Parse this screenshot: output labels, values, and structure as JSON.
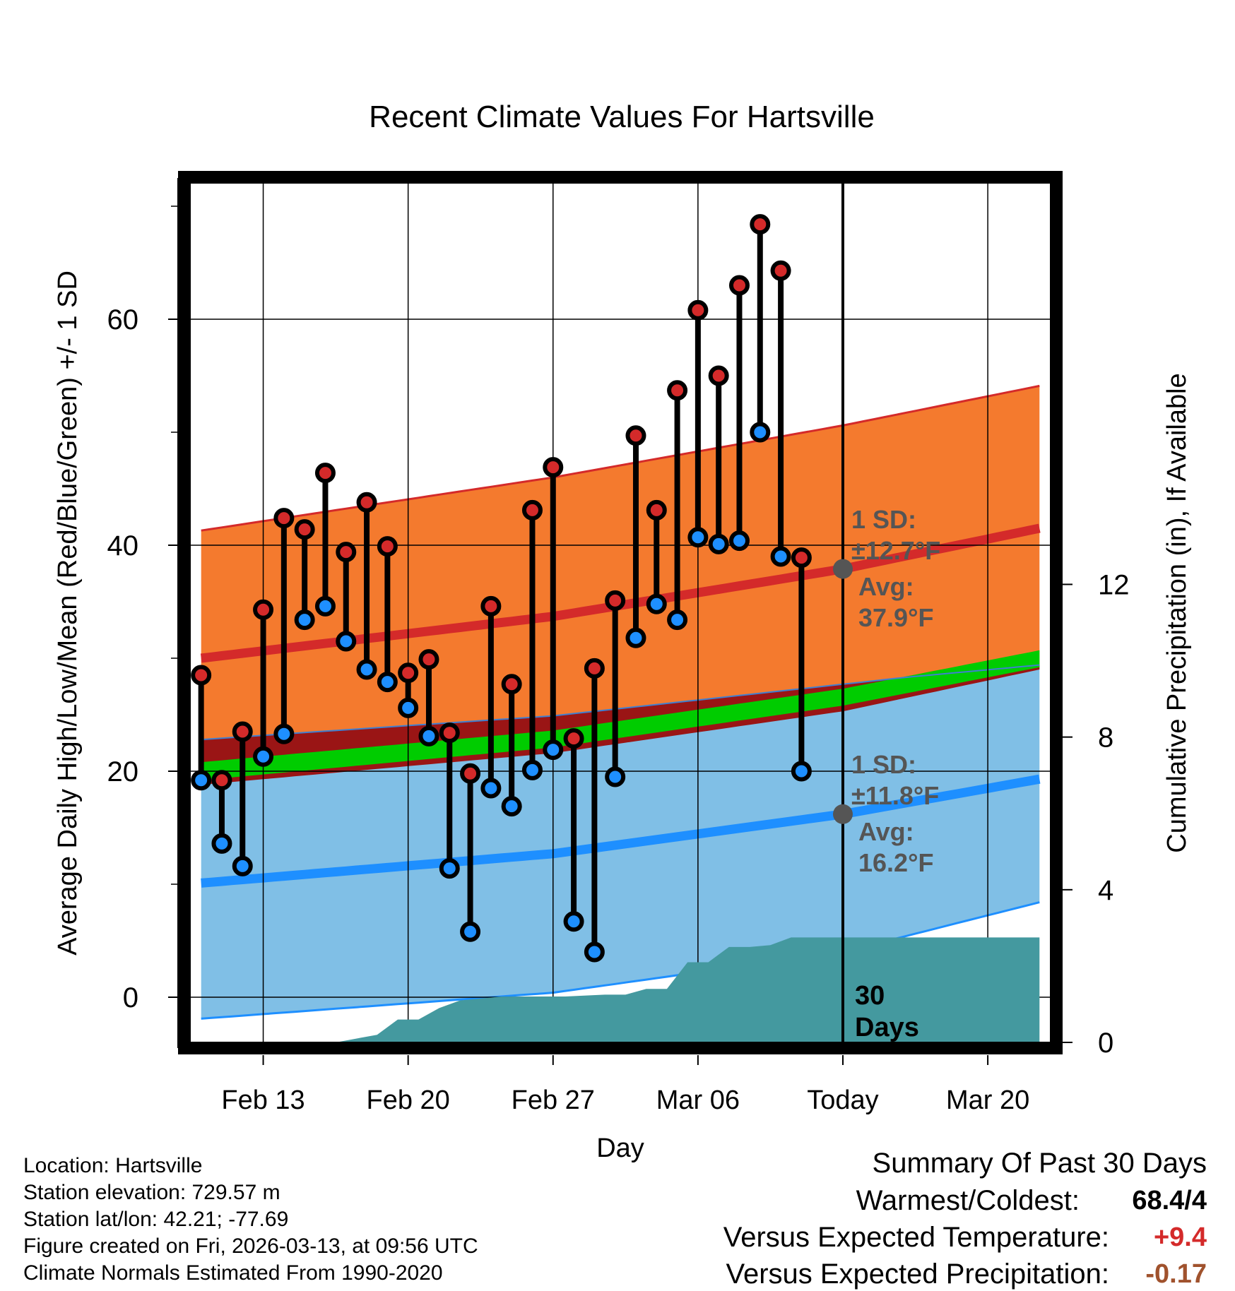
{
  "chart_data": {
    "type": "line",
    "title": "Recent Climate Values For Hartsville",
    "xlabel": "Day",
    "ylabel": "Average Daily High/Low/Mean (Red/Blue/Green) +/- 1 SD",
    "y2label": "Cumulative Precipitation (in), If Available",
    "x_range_days": [
      -31.5,
      10
    ],
    "ylim": [
      -4,
      72
    ],
    "y2lim": [
      0,
      22.5
    ],
    "yticks": [
      0,
      20,
      40,
      60
    ],
    "y2ticks": [
      0,
      4,
      8,
      12
    ],
    "xticks": [
      {
        "label": "Feb 13",
        "day": -28
      },
      {
        "label": "Feb 20",
        "day": -21
      },
      {
        "label": "Feb 27",
        "day": -14
      },
      {
        "label": "Mar 06",
        "day": -7
      },
      {
        "label": "Today",
        "day": 0
      },
      {
        "label": "Mar 20",
        "day": 7
      }
    ],
    "grid": true,
    "normals": {
      "high_avg": [
        {
          "day": -31,
          "value": 30.0
        },
        {
          "day": -14,
          "value": 33.7
        },
        {
          "day": 0,
          "value": 37.9
        },
        {
          "day": 9.5,
          "value": 41.5
        }
      ],
      "high_sd_upper": [
        {
          "day": -31,
          "value": 41.3
        },
        {
          "day": -14,
          "value": 46.0
        },
        {
          "day": 0,
          "value": 50.6
        },
        {
          "day": 9.5,
          "value": 54.1
        }
      ],
      "low_avg": [
        {
          "day": -31,
          "value": 10.1
        },
        {
          "day": -14,
          "value": 12.7
        },
        {
          "day": 0,
          "value": 16.2
        },
        {
          "day": 9.5,
          "value": 19.3
        }
      ],
      "low_sd_lower": [
        {
          "day": -31,
          "value": -1.9
        },
        {
          "day": -14,
          "value": 0.4
        },
        {
          "day": 0,
          "value": 4.0
        },
        {
          "day": 9.5,
          "value": 8.4
        }
      ],
      "mean_upper": [
        {
          "day": -31,
          "value": 20.8
        },
        {
          "day": -14,
          "value": 23.6
        },
        {
          "day": 0,
          "value": 27.3
        },
        {
          "day": 9.5,
          "value": 30.7
        }
      ],
      "mean_lower": [
        {
          "day": -31,
          "value": 19.2
        },
        {
          "day": -14,
          "value": 22.1
        },
        {
          "day": 0,
          "value": 25.8
        },
        {
          "day": 9.5,
          "value": 29.2
        }
      ],
      "dark_band_top": [
        {
          "day": -31,
          "value": 22.8
        },
        {
          "day": -14,
          "value": 24.9
        },
        {
          "day": 0,
          "value": 27.7
        },
        {
          "day": 3,
          "value": 28.3
        },
        {
          "day": 9.5,
          "value": 29.4
        }
      ],
      "dark_band_bottom": [
        {
          "day": -31,
          "value": 18.8
        },
        {
          "day": -14,
          "value": 21.6
        },
        {
          "day": 0,
          "value": 25.3
        },
        {
          "day": 9.5,
          "value": 29.0
        }
      ],
      "high_sd_text": "1 SD:",
      "high_sd_value": "±12.7°F",
      "high_avg_label": "Avg:",
      "high_avg_value": "37.9°F",
      "low_sd_text": "1 SD:",
      "low_sd_value": "±11.8°F",
      "low_avg_label": "Avg:",
      "low_avg_value": "16.2°F"
    },
    "observations": {
      "series": [
        "high",
        "low"
      ],
      "days": [
        -31,
        -30,
        -29,
        -28,
        -27,
        -26,
        -25,
        -24,
        -23,
        -22,
        -21,
        -20,
        -19,
        -18,
        -17,
        -16,
        -15,
        -14,
        -13,
        -12,
        -11,
        -10,
        -9,
        -8,
        -7,
        -6,
        -5,
        -4,
        -3,
        -2,
        -1
      ],
      "high": [
        28.5,
        19.2,
        23.5,
        34.3,
        42.4,
        41.4,
        46.4,
        39.4,
        43.8,
        39.9,
        28.7,
        29.9,
        23.4,
        19.8,
        34.6,
        27.7,
        43.1,
        46.9,
        22.9,
        29.1,
        35.1,
        49.7,
        43.1,
        53.7,
        60.8,
        55.0,
        63.0,
        68.4,
        64.3,
        38.9,
        null
      ],
      "low": [
        19.2,
        13.6,
        11.6,
        21.3,
        23.3,
        33.4,
        34.6,
        31.5,
        29.0,
        27.9,
        25.6,
        23.1,
        11.4,
        5.8,
        18.5,
        16.9,
        20.1,
        21.9,
        6.7,
        4.0,
        19.5,
        31.8,
        34.8,
        33.4,
        40.7,
        40.1,
        40.4,
        50.0,
        39.0,
        20.0,
        null
      ]
    },
    "precipitation_cumulative": [
      {
        "day": -24.5,
        "value": 0.0
      },
      {
        "day": -22.5,
        "value": 0.2
      },
      {
        "day": -21.5,
        "value": 0.6
      },
      {
        "day": -20.5,
        "value": 0.6
      },
      {
        "day": -19.5,
        "value": 0.9
      },
      {
        "day": -18.5,
        "value": 1.1
      },
      {
        "day": -16.5,
        "value": 1.2
      },
      {
        "day": -14.5,
        "value": 1.2
      },
      {
        "day": -13.5,
        "value": 1.2
      },
      {
        "day": -11.5,
        "value": 1.25
      },
      {
        "day": -10.5,
        "value": 1.25
      },
      {
        "day": -9.5,
        "value": 1.4
      },
      {
        "day": -8.5,
        "value": 1.4
      },
      {
        "day": -7.5,
        "value": 2.1
      },
      {
        "day": -6.5,
        "value": 2.1
      },
      {
        "day": -5.5,
        "value": 2.5
      },
      {
        "day": -4.5,
        "value": 2.5
      },
      {
        "day": -3.5,
        "value": 2.55
      },
      {
        "day": -2.5,
        "value": 2.75
      },
      {
        "day": -1.5,
        "value": 2.75
      },
      {
        "day": 9.5,
        "value": 2.75
      }
    ],
    "today_label": "30 Days",
    "today_label_line1": "30",
    "today_label_line2": "Days",
    "colors": {
      "high_band": "#f47a2e",
      "high_line": "#d42a2a",
      "low_band": "#80bfe6",
      "low_line": "#1e8fff",
      "mean_band": "#00cc00",
      "dark_band": "#9a1515",
      "precip": "#44999f",
      "high_marker": "#d42a2a",
      "low_marker": "#1e8fff",
      "label_gray": "#555555"
    }
  },
  "metadata": {
    "location": "Location: Hartsville",
    "elevation": "Station elevation: 729.57 m",
    "latlon": "Station lat/lon: 42.21; -77.69",
    "created": "Figure created on Fri, 2026-03-13, at 09:56 UTC",
    "normals": "Climate Normals Estimated From 1990-2020"
  },
  "summary": {
    "heading": "Summary Of Past 30 Days",
    "warmest_label": "Warmest/Coldest:",
    "warmest_value": "68.4/4",
    "temp_label": "Versus Expected Temperature:",
    "temp_value": "+9.4",
    "temp_color": "#d42a2a",
    "precip_label": "Versus Expected Precipitation:",
    "precip_value": "-0.17",
    "precip_color": "#a0522d"
  }
}
